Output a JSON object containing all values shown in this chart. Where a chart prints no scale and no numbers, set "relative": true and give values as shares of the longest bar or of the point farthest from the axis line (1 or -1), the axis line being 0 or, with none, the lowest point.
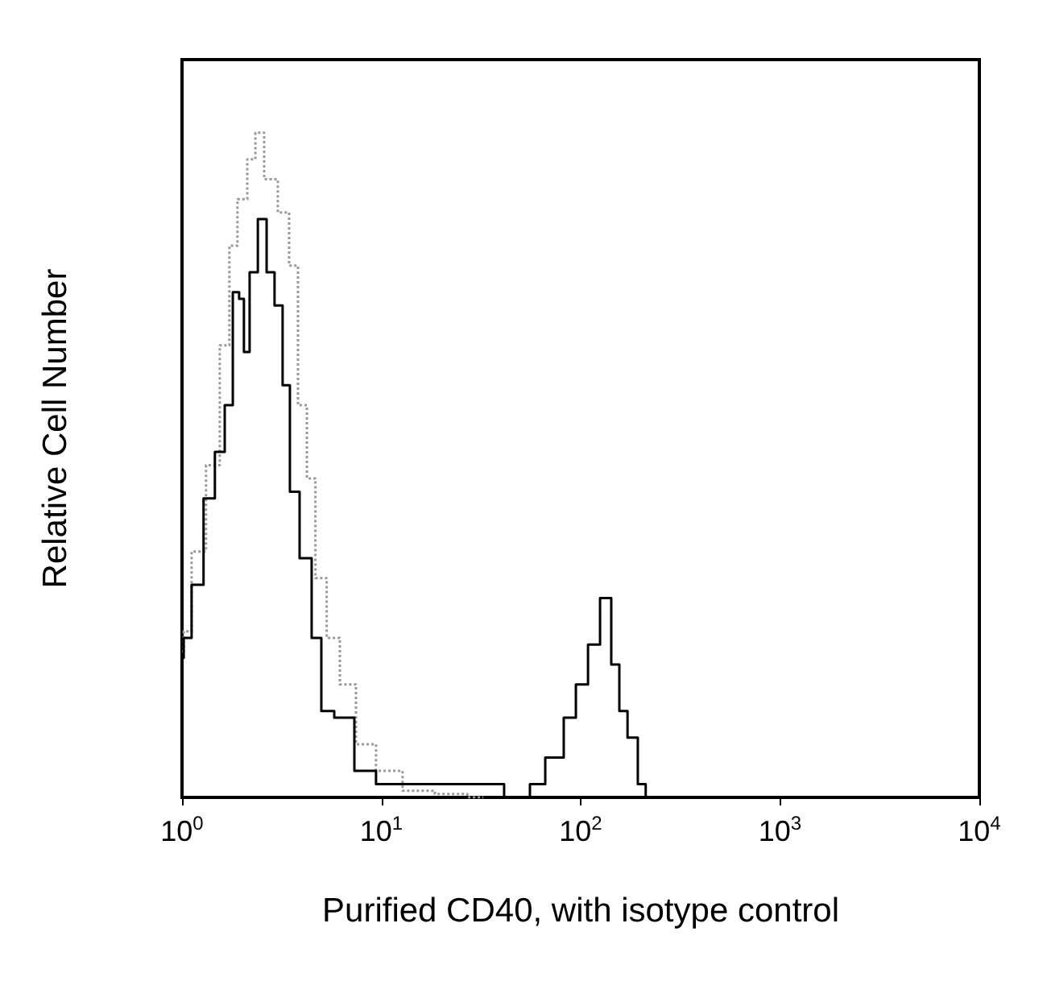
{
  "chart_data": {
    "type": "step",
    "relative": true,
    "xlabel": "Purified CD40, with isotype control",
    "ylabel": "Relative Cell Number",
    "log": "x",
    "xlim": [
      1,
      10000
    ],
    "xticks": [
      {
        "value": 1,
        "label": "10$^{0}$"
      },
      {
        "value": 10,
        "label": "10$^{1}$"
      },
      {
        "value": 100,
        "label": "10$^{2}$"
      },
      {
        "value": 1000,
        "label": "10$^{3}$"
      },
      {
        "value": 10000,
        "label": "10$^{4}$"
      }
    ],
    "grid": false,
    "marker": "none",
    "series": [
      {
        "color": "#999999",
        "line_style": "dotted",
        "x": [
          1,
          1.04,
          1.2,
          1.45,
          1.65,
          1.81,
          1.99,
          2.27,
          2.4,
          2.78,
          3.29,
          3.61,
          4.04,
          4.43,
          4.92,
          5.75,
          6.67,
          8.34,
          10.6,
          15.4,
          22.4,
          32.5
        ],
        "values": [
          0.22,
          0.25,
          0.37,
          0.5,
          0.68,
          0.83,
          0.9,
          0.96,
          1,
          0.93,
          0.88,
          0.8,
          0.59,
          0.48,
          0.33,
          0.24,
          0.17,
          0.08,
          0.04,
          0.01,
          0.005,
          0
        ]
      },
      {
        "color": "#000000",
        "line_style": "solid",
        "x": [
          1,
          1.04,
          1.2,
          1.37,
          1.56,
          1.72,
          1.88,
          1.99,
          2.1,
          2.27,
          2.54,
          2.78,
          3.05,
          3.35,
          3.61,
          4.19,
          4.77,
          5.24,
          6.43,
          8.34,
          10.6,
          15.4,
          40.5,
          42.1,
          54.6,
          56.7,
          77.8,
          86.9,
          103,
          115,
          136,
          149,
          164,
          180,
          208,
          216
        ],
        "values": [
          0.21,
          0.24,
          0.32,
          0.45,
          0.52,
          0.59,
          0.76,
          0.75,
          0.67,
          0.79,
          0.87,
          0.79,
          0.74,
          0.62,
          0.46,
          0.36,
          0.24,
          0.13,
          0.12,
          0.04,
          0.02,
          0.02,
          0.02,
          0,
          0,
          0.02,
          0.06,
          0.12,
          0.17,
          0.23,
          0.3,
          0.2,
          0.13,
          0.09,
          0.02,
          0
        ]
      }
    ]
  }
}
